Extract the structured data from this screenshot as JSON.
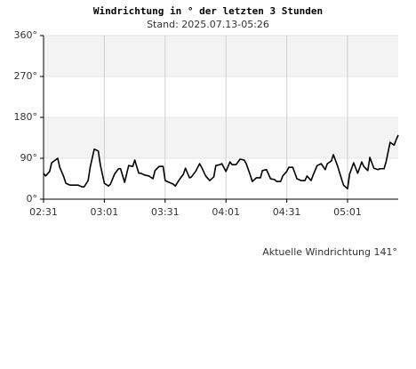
{
  "chart_data": {
    "type": "line",
    "title": "Windrichtung in ° der letzten 3 Stunden",
    "subtitle": "Stand: 2025.07.13-05:26",
    "annotation": "Aktuelle Windrichtung 141°",
    "x": [
      "02:31",
      "02:32",
      "02:34",
      "02:35",
      "02:38",
      "02:39",
      "02:41",
      "02:42",
      "02:44",
      "02:46",
      "02:48",
      "02:50",
      "02:51",
      "02:53",
      "02:54",
      "02:56",
      "02:58",
      "02:59",
      "03:01",
      "03:03",
      "03:04",
      "03:06",
      "03:08",
      "03:09",
      "03:11",
      "03:13",
      "03:15",
      "03:16",
      "03:18",
      "03:19",
      "03:21",
      "03:23",
      "03:25",
      "03:26",
      "03:28",
      "03:30",
      "03:31",
      "03:33",
      "03:35",
      "03:36",
      "03:38",
      "03:40",
      "03:41",
      "03:43",
      "03:44",
      "03:46",
      "03:48",
      "03:49",
      "03:51",
      "03:53",
      "03:55",
      "03:56",
      "03:58",
      "03:59",
      "04:01",
      "04:03",
      "04:04",
      "04:06",
      "04:08",
      "04:10",
      "04:11",
      "04:13",
      "04:14",
      "04:16",
      "04:18",
      "04:19",
      "04:21",
      "04:23",
      "04:25",
      "04:26",
      "04:28",
      "04:29",
      "04:31",
      "04:32",
      "04:34",
      "04:36",
      "04:38",
      "04:40",
      "04:41",
      "04:43",
      "04:44",
      "04:46",
      "04:48",
      "04:50",
      "04:51",
      "04:53",
      "04:54",
      "04:56",
      "04:58",
      "04:59",
      "05:01",
      "05:02",
      "05:04",
      "05:06",
      "05:08",
      "05:09",
      "05:11",
      "05:12",
      "05:14",
      "05:16",
      "05:17",
      "05:19",
      "05:20",
      "05:22",
      "05:24",
      "05:25",
      "05:26"
    ],
    "series": [
      {
        "name": "Windrichtung",
        "color": "#000000",
        "values": [
          57,
          51,
          61,
          80,
          90,
          70,
          49,
          35,
          31,
          31,
          31,
          27,
          27,
          41,
          70,
          110,
          106,
          76,
          35,
          29,
          33,
          55,
          67,
          67,
          37,
          74,
          72,
          86,
          57,
          57,
          53,
          51,
          45,
          63,
          72,
          72,
          41,
          37,
          33,
          29,
          43,
          55,
          68,
          47,
          49,
          61,
          78,
          70,
          51,
          41,
          49,
          74,
          76,
          78,
          61,
          82,
          76,
          76,
          88,
          86,
          78,
          53,
          39,
          47,
          47,
          63,
          65,
          45,
          43,
          39,
          39,
          51,
          61,
          70,
          70,
          45,
          41,
          41,
          51,
          41,
          53,
          74,
          78,
          65,
          78,
          84,
          98,
          74,
          45,
          31,
          23,
          55,
          80,
          57,
          82,
          72,
          63,
          92,
          68,
          65,
          67,
          67,
          82,
          125,
          119,
          131,
          141
        ]
      }
    ],
    "xlim": [
      "02:31",
      "05:26"
    ],
    "xticks": [
      "02:31",
      "03:01",
      "03:31",
      "04:01",
      "04:31",
      "05:01"
    ],
    "ylim": [
      0,
      360
    ],
    "yticks": [
      {
        "value": 0,
        "label": "0°"
      },
      {
        "value": 90,
        "label": "90°"
      },
      {
        "value": 180,
        "label": "180°"
      },
      {
        "value": 270,
        "label": "270°"
      },
      {
        "value": 360,
        "label": "360°"
      }
    ],
    "grid": true
  }
}
